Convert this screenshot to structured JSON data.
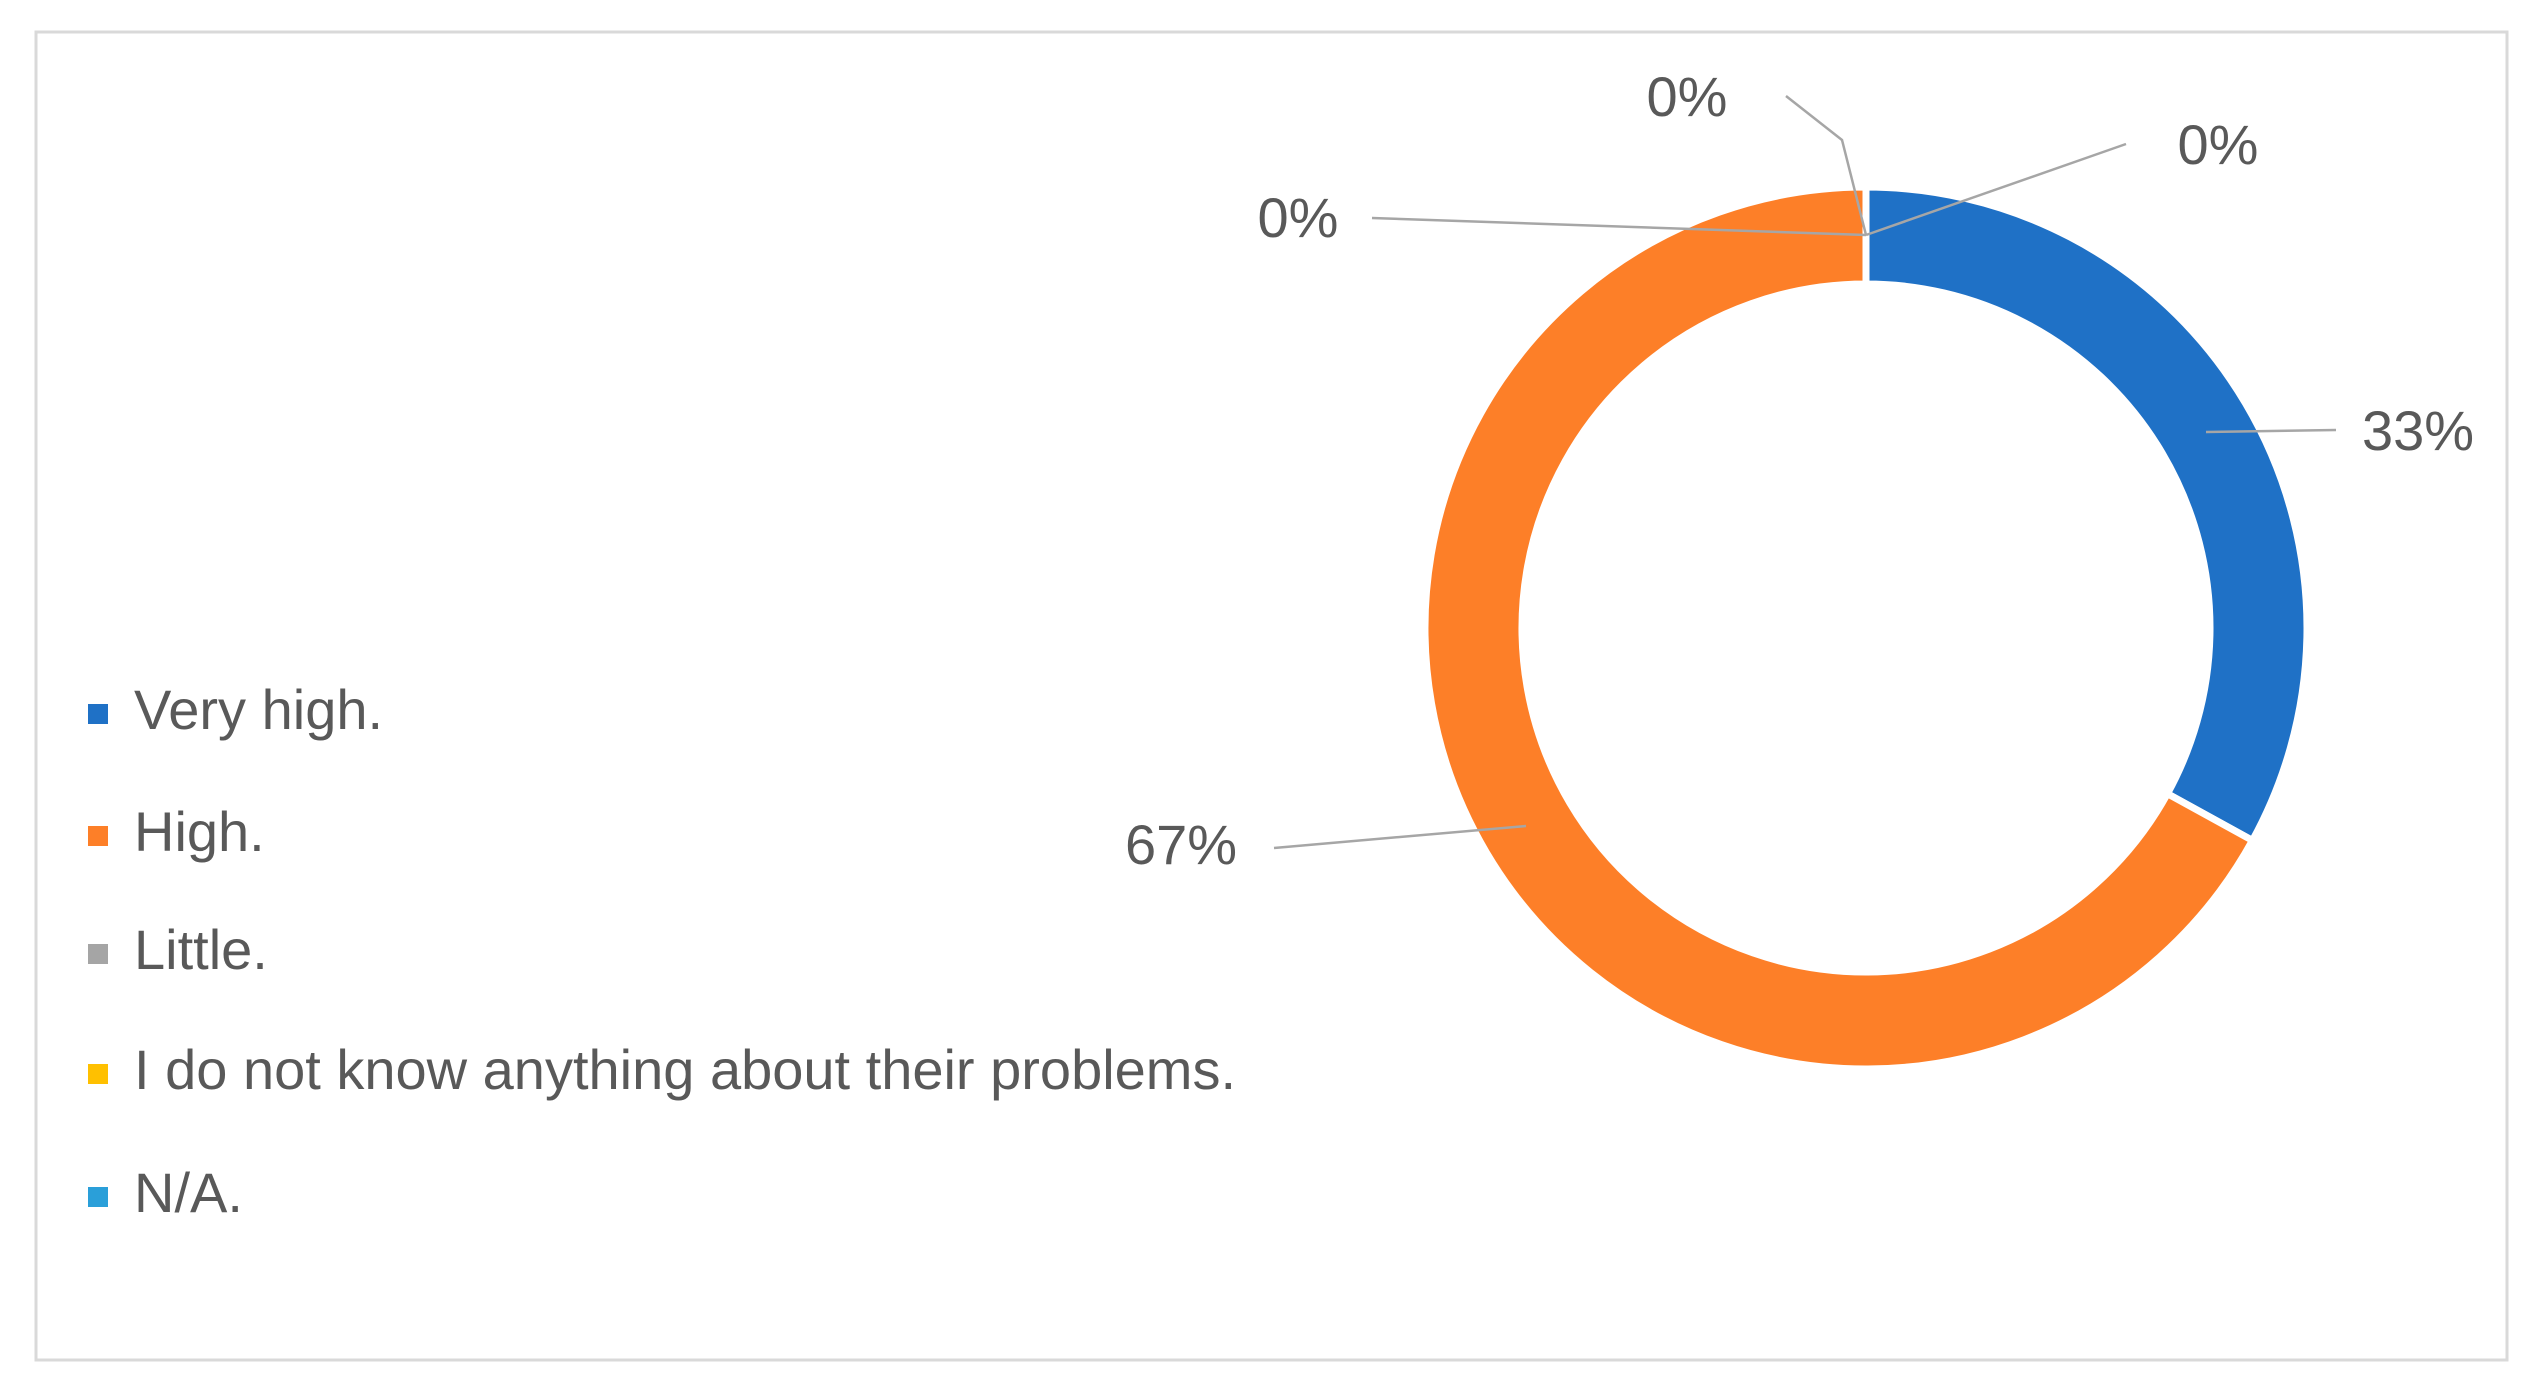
{
  "chart_data": {
    "type": "donut",
    "categories": [
      "Very high.",
      "High.",
      "Little.",
      "I do not know anything about their problems.",
      "N/A."
    ],
    "values": [
      33,
      67,
      0,
      0,
      0
    ],
    "value_labels": [
      "33%",
      "67%",
      "0%",
      "0%",
      "0%"
    ],
    "colors": [
      "#1f71c6",
      "#fd7f28",
      "#a5a5a5",
      "#ffc000",
      "#2a9fd9"
    ],
    "legend": "left"
  }
}
